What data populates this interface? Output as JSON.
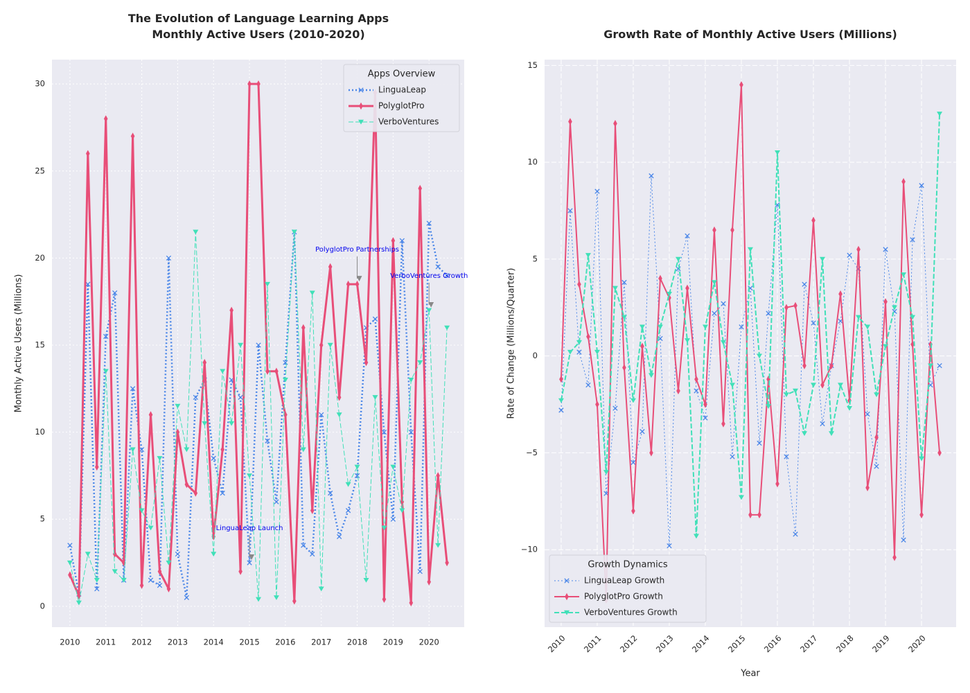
{
  "chart_data": [
    {
      "type": "line",
      "title": "The Evolution of Language Learning Apps\nMonthly Active Users (2010-2020)",
      "ylabel": "Monthly Active Users (Millions)",
      "x": [
        2010,
        2010.25,
        2010.5,
        2010.75,
        2011,
        2011.25,
        2011.5,
        2011.75,
        2012,
        2012.25,
        2012.5,
        2012.75,
        2013,
        2013.25,
        2013.5,
        2013.75,
        2014,
        2014.25,
        2014.5,
        2014.75,
        2015,
        2015.25,
        2015.5,
        2015.75,
        2016,
        2016.25,
        2016.5,
        2016.75,
        2017,
        2017.25,
        2017.5,
        2017.75,
        2018,
        2018.25,
        2018.5,
        2018.75,
        2019,
        2019.25,
        2019.5,
        2019.75,
        2020,
        2020.25,
        2020.5
      ],
      "xlim": [
        2009.5,
        2020.98
      ],
      "xticks": [
        2010,
        2011,
        2012,
        2013,
        2014,
        2015,
        2016,
        2017,
        2018,
        2019,
        2020
      ],
      "ylim": [
        -1.2,
        31.4
      ],
      "yticks": [
        0,
        5,
        10,
        15,
        20,
        25,
        30
      ],
      "grid": true,
      "grid_style": "dotted",
      "legend": {
        "title": "Apps Overview",
        "loc": "upper right"
      },
      "series": [
        {
          "name": "LinguaLeap",
          "color": "#4a86e8",
          "linestyle": "dotted",
          "marker": "x",
          "linewidth": 2.5,
          "values": [
            3.5,
            0.7,
            18.5,
            1,
            15.5,
            18,
            1.5,
            12.5,
            9,
            1.5,
            1.2,
            20,
            3,
            0.5,
            12,
            13,
            8.5,
            6.5,
            13,
            12,
            2.5,
            15,
            9.5,
            6,
            14,
            21.5,
            3.5,
            3,
            11,
            6.5,
            4,
            5.5,
            7.5,
            16,
            16.5,
            10,
            5,
            21,
            10,
            2,
            22,
            19.5,
            19
          ]
        },
        {
          "name": "PolyglotPro",
          "color": "#e84e78",
          "linestyle": "solid",
          "marker": "diamond",
          "linewidth": 3,
          "values": [
            1.8,
            0.6,
            26,
            8,
            28,
            3,
            2.5,
            27,
            1.2,
            11,
            2,
            1,
            10,
            7,
            6.5,
            14,
            4,
            9,
            17,
            2,
            30,
            30,
            13.5,
            13.5,
            11,
            0.3,
            16,
            5.5,
            15,
            19.5,
            12,
            18.5,
            18.5,
            14,
            29.5,
            0.4,
            21,
            6,
            0.2,
            24,
            1.4,
            7.5,
            2.5
          ]
        },
        {
          "name": "VerboVentures",
          "color": "#40e0b8",
          "linestyle": "dashed",
          "marker": "triangle_down",
          "linewidth": 1,
          "values": [
            2.5,
            0.2,
            3,
            1.5,
            13.5,
            2,
            1.5,
            9,
            5.5,
            4.5,
            8.5,
            2.5,
            11.5,
            9,
            21.5,
            10.5,
            3,
            13.5,
            10.5,
            15,
            7.5,
            0.4,
            18.5,
            0.5,
            13,
            21.5,
            9,
            18,
            1,
            15,
            11,
            7,
            8,
            1.5,
            12,
            4.5,
            8,
            5.5,
            13,
            14,
            17,
            3.5,
            16
          ]
        }
      ],
      "annotations": [
        {
          "text": "LinguaLeap Launch",
          "x": 2015,
          "y": 2.5
        },
        {
          "text": "PolyglotPro Partnerships",
          "x": 2018,
          "y": 18.5
        },
        {
          "text": "VerboVentures Growth",
          "x": 2020,
          "y": 17
        }
      ]
    },
    {
      "type": "line",
      "title": "Growth Rate of Monthly Active Users (Millions)",
      "xlabel": "Year",
      "ylabel": "Rate of Change (Millions/Quarter)",
      "x": [
        2010,
        2010.25,
        2010.5,
        2010.75,
        2011,
        2011.25,
        2011.5,
        2011.75,
        2012,
        2012.25,
        2012.5,
        2012.75,
        2013,
        2013.25,
        2013.5,
        2013.75,
        2014,
        2014.25,
        2014.5,
        2014.75,
        2015,
        2015.25,
        2015.5,
        2015.75,
        2016,
        2016.25,
        2016.5,
        2016.75,
        2017,
        2017.25,
        2017.5,
        2017.75,
        2018,
        2018.25,
        2018.5,
        2018.75,
        2019,
        2019.25,
        2019.5,
        2019.75,
        2020,
        2020.25,
        2020.5
      ],
      "xlim": [
        2009.54,
        2020.96
      ],
      "xticks": [
        2010,
        2011,
        2012,
        2013,
        2014,
        2015,
        2016,
        2017,
        2018,
        2019,
        2020
      ],
      "xtick_rotation": 45,
      "ylim": [
        -14,
        15.3
      ],
      "yticks": [
        {
          "value": -10,
          "label": "−10"
        },
        {
          "value": -5,
          "label": "−5"
        },
        0,
        5,
        10,
        15
      ],
      "grid": true,
      "grid_style": "dashed",
      "legend": {
        "title": "Growth Dynamics",
        "loc": "lower left"
      },
      "series": [
        {
          "name": "LinguaLeap Growth",
          "color": "#4a86e8",
          "linestyle": "dotted",
          "marker": "x",
          "linewidth": 1,
          "values": [
            -2.8,
            7.5,
            0.2,
            -1.5,
            8.5,
            -7.1,
            -2.7,
            3.8,
            -5.5,
            -3.9,
            9.3,
            0.9,
            -9.8,
            4.5,
            6.2,
            -1.8,
            -3.2,
            2.2,
            2.7,
            -5.2,
            1.5,
            3.5,
            -4.5,
            2.2,
            7.8,
            -5.2,
            -9.2,
            3.7,
            1.7,
            -3.5,
            -0.5,
            1.8,
            5.2,
            4.5,
            -3,
            -5.7,
            5.5,
            2.3,
            -9.5,
            6,
            8.8,
            -1.5,
            -0.5
          ]
        },
        {
          "name": "PolyglotPro Growth",
          "color": "#e84e78",
          "linestyle": "solid",
          "marker": "diamond",
          "linewidth": 2,
          "values": [
            -1.2,
            12.1,
            3.7,
            1,
            -2.5,
            -12.6,
            12,
            -0.6,
            -8,
            0.5,
            -5,
            4,
            3,
            -1.8,
            3.5,
            -1.2,
            -2.5,
            6.5,
            -3.5,
            6.5,
            14,
            -8.2,
            -8.2,
            -1.2,
            -6.6,
            2.5,
            2.6,
            -0.5,
            7,
            -1.5,
            -0.5,
            3.2,
            -2.3,
            5.5,
            -6.8,
            -4.2,
            2.8,
            -10.4,
            9,
            0.6,
            -8.2,
            0.6,
            -5
          ]
        },
        {
          "name": "VerboVentures Growth",
          "color": "#40e0b8",
          "linestyle": "dashed",
          "marker": "triangle_down",
          "linewidth": 2,
          "values": [
            -2.3,
            0.2,
            0.7,
            5.2,
            0.2,
            -6,
            3.5,
            2,
            -2.3,
            1.5,
            -1,
            1.5,
            3.2,
            5,
            0.8,
            -9.3,
            1.5,
            3.8,
            0.7,
            -1.5,
            -7.3,
            5.5,
            0,
            -2.6,
            10.5,
            -2,
            -1.8,
            -4,
            -1.5,
            5,
            -4,
            -1.5,
            -2.7,
            2,
            1.5,
            -2,
            0.5,
            2.5,
            4.2,
            2,
            -5.3,
            -0.5,
            12.5
          ]
        }
      ]
    }
  ]
}
